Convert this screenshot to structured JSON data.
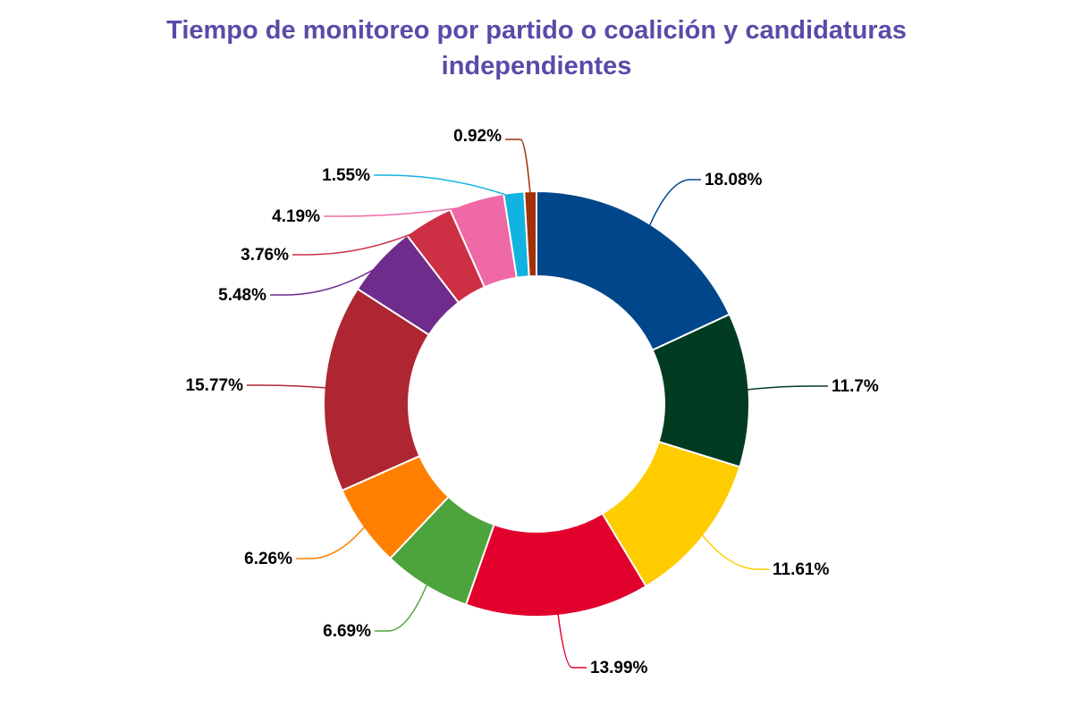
{
  "chart_data": {
    "type": "pie",
    "variant": "donut",
    "title_lines": [
      "Tiempo de monitoreo por partido o coalición y candidaturas",
      "independientes"
    ],
    "slices": [
      {
        "value": 18.08,
        "label": "18.08%",
        "color": "#00468b"
      },
      {
        "value": 11.7,
        "label": "11.7%",
        "color": "#003b22"
      },
      {
        "value": 11.61,
        "label": "11.61%",
        "color": "#ffcc00"
      },
      {
        "value": 13.99,
        "label": "13.99%",
        "color": "#e2002d"
      },
      {
        "value": 6.69,
        "label": "6.69%",
        "color": "#4ea43c"
      },
      {
        "value": 6.26,
        "label": "6.26%",
        "color": "#ff8000"
      },
      {
        "value": 15.77,
        "label": "15.77%",
        "color": "#ad2631"
      },
      {
        "value": 5.48,
        "label": "5.48%",
        "color": "#6f2c8c"
      },
      {
        "value": 3.76,
        "label": "3.76%",
        "color": "#cd2f45"
      },
      {
        "value": 4.19,
        "label": "4.19%",
        "color": "#ef69a6"
      },
      {
        "value": 1.55,
        "label": "1.55%",
        "color": "#12b3e0"
      },
      {
        "value": 0.92,
        "label": "0.92%",
        "color": "#a13106"
      }
    ],
    "title_color": "#5b4aa8"
  }
}
